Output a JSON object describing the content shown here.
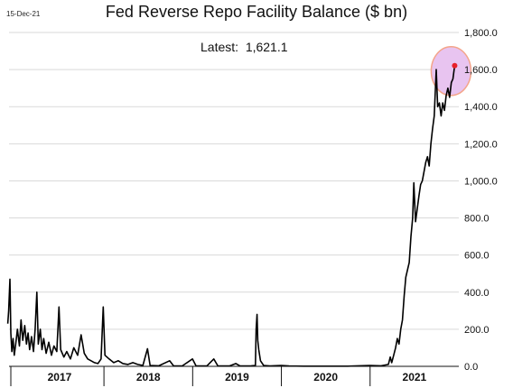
{
  "header": {
    "date": "15-Dec-21",
    "title": "Fed Reverse Repo Facility Balance ($ bn)",
    "latest_label": "Latest:",
    "latest_value": "1,621.1"
  },
  "colors": {
    "line": "#000000",
    "grid": "#d9d9d9",
    "highlight_fill": "#e8c4f0",
    "highlight_stroke": "#f4a58a",
    "marker": "#e8202a"
  },
  "chart_data": {
    "type": "line",
    "title": "Fed Reverse Repo Facility Balance ($ bn)",
    "xlabel": "",
    "ylabel": "",
    "ylim": [
      0,
      1800
    ],
    "y_ticks": [
      0,
      200,
      400,
      600,
      800,
      1000,
      1200,
      1400,
      1600,
      1800
    ],
    "y_tick_labels": [
      "0.0",
      "200.0",
      "400.0",
      "600.0",
      "800.0",
      "1,000.0",
      "1,200.0",
      "1,400.0",
      "1,600.0",
      "1,800.0"
    ],
    "x_range": [
      "2017-01-01",
      "2021-12-31"
    ],
    "year_labels": [
      "2017",
      "2018",
      "2019",
      "2020",
      "2021"
    ],
    "grid": "horizontal",
    "latest": {
      "date": "2021-12-15",
      "value": 1621.1
    },
    "series": [
      {
        "points": [
          [
            "2016-12-01",
            230
          ],
          [
            "2016-12-05",
            300
          ],
          [
            "2016-12-10",
            470
          ],
          [
            "2016-12-14",
            180
          ],
          [
            "2016-12-18",
            80
          ],
          [
            "2016-12-23",
            150
          ],
          [
            "2016-12-28",
            60
          ],
          [
            "2017-01-03",
            120
          ],
          [
            "2017-01-10",
            200
          ],
          [
            "2017-01-18",
            110
          ],
          [
            "2017-01-25",
            250
          ],
          [
            "2017-02-01",
            140
          ],
          [
            "2017-02-09",
            220
          ],
          [
            "2017-02-16",
            120
          ],
          [
            "2017-02-23",
            180
          ],
          [
            "2017-03-01",
            90
          ],
          [
            "2017-03-09",
            160
          ],
          [
            "2017-03-17",
            80
          ],
          [
            "2017-03-24",
            200
          ],
          [
            "2017-03-31",
            400
          ],
          [
            "2017-04-06",
            120
          ],
          [
            "2017-04-14",
            200
          ],
          [
            "2017-04-21",
            90
          ],
          [
            "2017-04-28",
            150
          ],
          [
            "2017-05-08",
            70
          ],
          [
            "2017-05-19",
            130
          ],
          [
            "2017-05-30",
            60
          ],
          [
            "2017-06-09",
            110
          ],
          [
            "2017-06-21",
            80
          ],
          [
            "2017-06-30",
            320
          ],
          [
            "2017-07-07",
            90
          ],
          [
            "2017-07-20",
            50
          ],
          [
            "2017-08-01",
            80
          ],
          [
            "2017-08-16",
            40
          ],
          [
            "2017-08-30",
            100
          ],
          [
            "2017-09-15",
            60
          ],
          [
            "2017-09-29",
            170
          ],
          [
            "2017-10-12",
            70
          ],
          [
            "2017-10-26",
            40
          ],
          [
            "2017-11-09",
            30
          ],
          [
            "2017-11-23",
            20
          ],
          [
            "2017-12-07",
            15
          ],
          [
            "2017-12-20",
            40
          ],
          [
            "2017-12-29",
            320
          ],
          [
            "2018-01-05",
            60
          ],
          [
            "2018-01-22",
            40
          ],
          [
            "2018-02-10",
            20
          ],
          [
            "2018-03-01",
            30
          ],
          [
            "2018-03-20",
            15
          ],
          [
            "2018-04-10",
            10
          ],
          [
            "2018-04-30",
            20
          ],
          [
            "2018-05-20",
            10
          ],
          [
            "2018-06-10",
            5
          ],
          [
            "2018-06-29",
            95
          ],
          [
            "2018-07-10",
            5
          ],
          [
            "2018-08-15",
            3
          ],
          [
            "2018-09-28",
            30
          ],
          [
            "2018-10-15",
            2
          ],
          [
            "2018-11-20",
            3
          ],
          [
            "2018-12-31",
            40
          ],
          [
            "2019-01-15",
            2
          ],
          [
            "2019-03-01",
            3
          ],
          [
            "2019-03-29",
            40
          ],
          [
            "2019-04-15",
            2
          ],
          [
            "2019-06-01",
            2
          ],
          [
            "2019-06-28",
            15
          ],
          [
            "2019-07-15",
            2
          ],
          [
            "2019-08-30",
            3
          ],
          [
            "2019-09-16",
            5
          ],
          [
            "2019-09-19",
            200
          ],
          [
            "2019-09-23",
            280
          ],
          [
            "2019-09-26",
            140
          ],
          [
            "2019-09-30",
            90
          ],
          [
            "2019-10-07",
            30
          ],
          [
            "2019-10-20",
            5
          ],
          [
            "2019-11-15",
            2
          ],
          [
            "2019-12-31",
            5
          ],
          [
            "2020-02-01",
            2
          ],
          [
            "2020-04-01",
            1
          ],
          [
            "2020-06-01",
            1
          ],
          [
            "2020-08-01",
            1
          ],
          [
            "2020-10-01",
            1
          ],
          [
            "2020-12-31",
            5
          ],
          [
            "2021-02-15",
            3
          ],
          [
            "2021-03-17",
            10
          ],
          [
            "2021-03-25",
            50
          ],
          [
            "2021-03-31",
            20
          ],
          [
            "2021-04-08",
            60
          ],
          [
            "2021-04-16",
            100
          ],
          [
            "2021-04-23",
            150
          ],
          [
            "2021-04-30",
            120
          ],
          [
            "2021-05-07",
            200
          ],
          [
            "2021-05-14",
            250
          ],
          [
            "2021-05-21",
            380
          ],
          [
            "2021-05-28",
            480
          ],
          [
            "2021-06-04",
            520
          ],
          [
            "2021-06-11",
            560
          ],
          [
            "2021-06-18",
            700
          ],
          [
            "2021-06-25",
            800
          ],
          [
            "2021-06-30",
            990
          ],
          [
            "2021-07-07",
            780
          ],
          [
            "2021-07-14",
            850
          ],
          [
            "2021-07-21",
            920
          ],
          [
            "2021-07-28",
            980
          ],
          [
            "2021-08-04",
            1000
          ],
          [
            "2021-08-11",
            1050
          ],
          [
            "2021-08-18",
            1100
          ],
          [
            "2021-08-25",
            1130
          ],
          [
            "2021-09-01",
            1080
          ],
          [
            "2021-09-08",
            1200
          ],
          [
            "2021-09-15",
            1280
          ],
          [
            "2021-09-22",
            1350
          ],
          [
            "2021-09-30",
            1600
          ],
          [
            "2021-10-06",
            1400
          ],
          [
            "2021-10-13",
            1420
          ],
          [
            "2021-10-20",
            1350
          ],
          [
            "2021-10-27",
            1420
          ],
          [
            "2021-11-03",
            1380
          ],
          [
            "2021-11-10",
            1460
          ],
          [
            "2021-11-17",
            1500
          ],
          [
            "2021-11-24",
            1450
          ],
          [
            "2021-12-01",
            1530
          ],
          [
            "2021-12-08",
            1550
          ],
          [
            "2021-12-15",
            1621.1
          ]
        ]
      }
    ]
  }
}
